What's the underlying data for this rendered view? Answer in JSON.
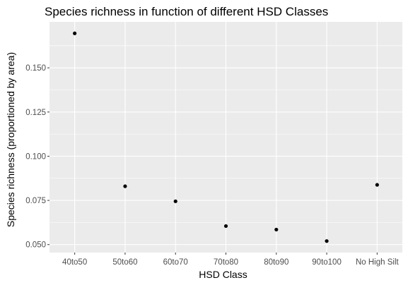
{
  "chart_data": {
    "type": "scatter",
    "title": "Species richness in function of different HSD Classes",
    "xlabel": "HSD Class",
    "ylabel": "Species richness (proportioned by area)",
    "categories": [
      "40to50",
      "50to60",
      "60to70",
      "70to80",
      "80to90",
      "90to100",
      "No High Silt"
    ],
    "values": [
      0.1695,
      0.083,
      0.0745,
      0.0605,
      0.0585,
      0.052,
      0.0838
    ],
    "ylim": [
      0.0455,
      0.176
    ],
    "y_ticks": [
      0.05,
      0.075,
      0.1,
      0.125,
      0.15
    ],
    "y_tick_labels": [
      "0.050",
      "0.075",
      "0.100",
      "0.125",
      "0.150"
    ],
    "grid": true,
    "panel_color": "#ebebeb",
    "grid_color": "#ffffff",
    "point_color": "#000000",
    "tick_label_color": "#4d4d4d",
    "tick_color": "#333333"
  }
}
